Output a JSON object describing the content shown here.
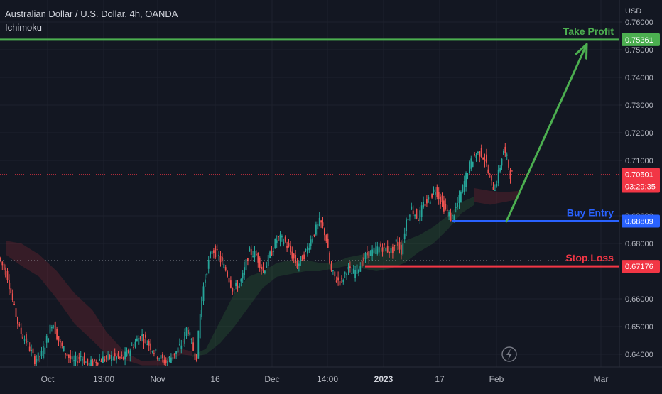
{
  "header": {
    "symbol_line": "Australian Dollar / U.S. Dollar, 4h, OANDA",
    "indicator": "Ichimoku"
  },
  "axis_unit": "USD",
  "chart_data": {
    "type": "candlestick",
    "title": "Australian Dollar / U.S. Dollar, 4h, OANDA",
    "ylabel": "USD",
    "ylim": [
      0.6355,
      0.7615
    ],
    "y_ticks": [
      "0.76000",
      "0.75000",
      "0.74000",
      "0.73000",
      "0.72000",
      "0.71000",
      "0.69000",
      "0.68000",
      "0.66000",
      "0.65000",
      "0.64000"
    ],
    "x_ticks": [
      {
        "label": "Oct",
        "bold": false
      },
      {
        "label": "13:00",
        "bold": false
      },
      {
        "label": "Nov",
        "bold": false
      },
      {
        "label": "16",
        "bold": false
      },
      {
        "label": "Dec",
        "bold": false
      },
      {
        "label": "14:00",
        "bold": false
      },
      {
        "label": "2023",
        "bold": true
      },
      {
        "label": "17",
        "bold": false
      },
      {
        "label": "Feb",
        "bold": false
      },
      {
        "label": "Mar",
        "bold": false
      }
    ],
    "price_path": [
      [
        0,
        0.675
      ],
      [
        12,
        0.668
      ],
      [
        22,
        0.656
      ],
      [
        30,
        0.648
      ],
      [
        40,
        0.644
      ],
      [
        50,
        0.638
      ],
      [
        60,
        0.64
      ],
      [
        68,
        0.646
      ],
      [
        75,
        0.652
      ],
      [
        85,
        0.644
      ],
      [
        95,
        0.64
      ],
      [
        105,
        0.637
      ],
      [
        115,
        0.6395
      ],
      [
        125,
        0.636
      ],
      [
        140,
        0.638
      ],
      [
        160,
        0.639
      ],
      [
        175,
        0.6385
      ],
      [
        188,
        0.643
      ],
      [
        200,
        0.647
      ],
      [
        210,
        0.644
      ],
      [
        222,
        0.64
      ],
      [
        235,
        0.637
      ],
      [
        250,
        0.641
      ],
      [
        258,
        0.644
      ],
      [
        265,
        0.65
      ],
      [
        272,
        0.643
      ],
      [
        278,
        0.638
      ],
      [
        285,
        0.66
      ],
      [
        292,
        0.67
      ],
      [
        300,
        0.678
      ],
      [
        308,
        0.676
      ],
      [
        320,
        0.67
      ],
      [
        330,
        0.663
      ],
      [
        342,
        0.667
      ],
      [
        352,
        0.677
      ],
      [
        362,
        0.676
      ],
      [
        372,
        0.67
      ],
      [
        382,
        0.676
      ],
      [
        392,
        0.682
      ],
      [
        402,
        0.681
      ],
      [
        412,
        0.676
      ],
      [
        420,
        0.672
      ],
      [
        432,
        0.677
      ],
      [
        442,
        0.683
      ],
      [
        452,
        0.688
      ],
      [
        460,
        0.683
      ],
      [
        467,
        0.67
      ],
      [
        475,
        0.667
      ],
      [
        482,
        0.666
      ],
      [
        490,
        0.671
      ],
      [
        498,
        0.669
      ],
      [
        508,
        0.672
      ],
      [
        518,
        0.676
      ],
      [
        527,
        0.677
      ],
      [
        538,
        0.679
      ],
      [
        545,
        0.678
      ],
      [
        553,
        0.677
      ],
      [
        560,
        0.681
      ],
      [
        567,
        0.677
      ],
      [
        573,
        0.688
      ],
      [
        580,
        0.693
      ],
      [
        590,
        0.689
      ],
      [
        598,
        0.694
      ],
      [
        606,
        0.696
      ],
      [
        614,
        0.7
      ],
      [
        621,
        0.696
      ],
      [
        627,
        0.693
      ],
      [
        632,
        0.691
      ],
      [
        637,
        0.6885
      ],
      [
        642,
        0.692
      ],
      [
        648,
        0.696
      ],
      [
        655,
        0.702
      ],
      [
        662,
        0.708
      ],
      [
        670,
        0.712
      ],
      [
        678,
        0.713
      ],
      [
        685,
        0.71
      ],
      [
        692,
        0.702
      ],
      [
        698,
        0.7
      ],
      [
        704,
        0.706
      ],
      [
        710,
        0.714
      ],
      [
        716,
        0.71
      ],
      [
        720,
        0.705
      ]
    ],
    "cloud_red": [
      [
        [
          8,
          0.681
        ],
        [
          30,
          0.68
        ],
        [
          55,
          0.676
        ],
        [
          80,
          0.67
        ],
        [
          105,
          0.662
        ],
        [
          130,
          0.656
        ],
        [
          150,
          0.648
        ],
        [
          175,
          0.641
        ],
        [
          200,
          0.6375
        ],
        [
          230,
          0.638
        ],
        [
          255,
          0.642
        ],
        [
          270,
          0.641
        ],
        [
          270,
          0.6395
        ],
        [
          255,
          0.64
        ],
        [
          230,
          0.636
        ],
        [
          200,
          0.636
        ],
        [
          175,
          0.638
        ],
        [
          150,
          0.64
        ],
        [
          130,
          0.645
        ],
        [
          105,
          0.651
        ],
        [
          80,
          0.66
        ],
        [
          55,
          0.668
        ],
        [
          30,
          0.672
        ],
        [
          8,
          0.676
        ]
      ],
      [
        [
          668,
          0.7
        ],
        [
          690,
          0.699
        ],
        [
          710,
          0.6985
        ],
        [
          730,
          0.699
        ],
        [
          730,
          0.696
        ],
        [
          710,
          0.695
        ],
        [
          690,
          0.694
        ],
        [
          668,
          0.695
        ]
      ]
    ],
    "cloud_green": [
      [
        [
          270,
          0.6395
        ],
        [
          290,
          0.642
        ],
        [
          310,
          0.652
        ],
        [
          330,
          0.662
        ],
        [
          350,
          0.668
        ],
        [
          370,
          0.67
        ],
        [
          390,
          0.673
        ],
        [
          410,
          0.674
        ],
        [
          430,
          0.674
        ],
        [
          450,
          0.673
        ],
        [
          470,
          0.673
        ],
        [
          490,
          0.675
        ],
        [
          510,
          0.676
        ],
        [
          530,
          0.678
        ],
        [
          550,
          0.679
        ],
        [
          570,
          0.681
        ],
        [
          590,
          0.683
        ],
        [
          610,
          0.686
        ],
        [
          630,
          0.69
        ],
        [
          650,
          0.695
        ],
        [
          668,
          0.697
        ],
        [
          668,
          0.694
        ],
        [
          650,
          0.691
        ],
        [
          630,
          0.685
        ],
        [
          610,
          0.68
        ],
        [
          590,
          0.677
        ],
        [
          570,
          0.673
        ],
        [
          550,
          0.671
        ],
        [
          530,
          0.67
        ],
        [
          510,
          0.671
        ],
        [
          490,
          0.672
        ],
        [
          470,
          0.671
        ],
        [
          450,
          0.67
        ],
        [
          430,
          0.67
        ],
        [
          410,
          0.669
        ],
        [
          390,
          0.668
        ],
        [
          370,
          0.664
        ],
        [
          350,
          0.657
        ],
        [
          330,
          0.65
        ],
        [
          310,
          0.644
        ],
        [
          290,
          0.64
        ],
        [
          270,
          0.639
        ]
      ]
    ],
    "annotations": {
      "take_profit": {
        "label": "Take Profit",
        "price": 0.75361,
        "price_label": "0.75361",
        "color": "#4caf50"
      },
      "buy_entry": {
        "label": "Buy Entry",
        "price": 0.68809,
        "price_label": "0.68809",
        "color": "#2962ff"
      },
      "stop_loss": {
        "label": "Stop Loss",
        "price": 0.67176,
        "price_label": "0.67176",
        "color": "#f23645"
      },
      "last_price": {
        "price": 0.70501,
        "price_label": "0.70501",
        "countdown": "03:29:35",
        "color": "#f23645"
      },
      "reference_price": 0.6738,
      "arrow": {
        "from": [
          713,
          0.688
        ],
        "to": [
          826,
          0.752
        ],
        "color": "#4caf50"
      }
    }
  }
}
